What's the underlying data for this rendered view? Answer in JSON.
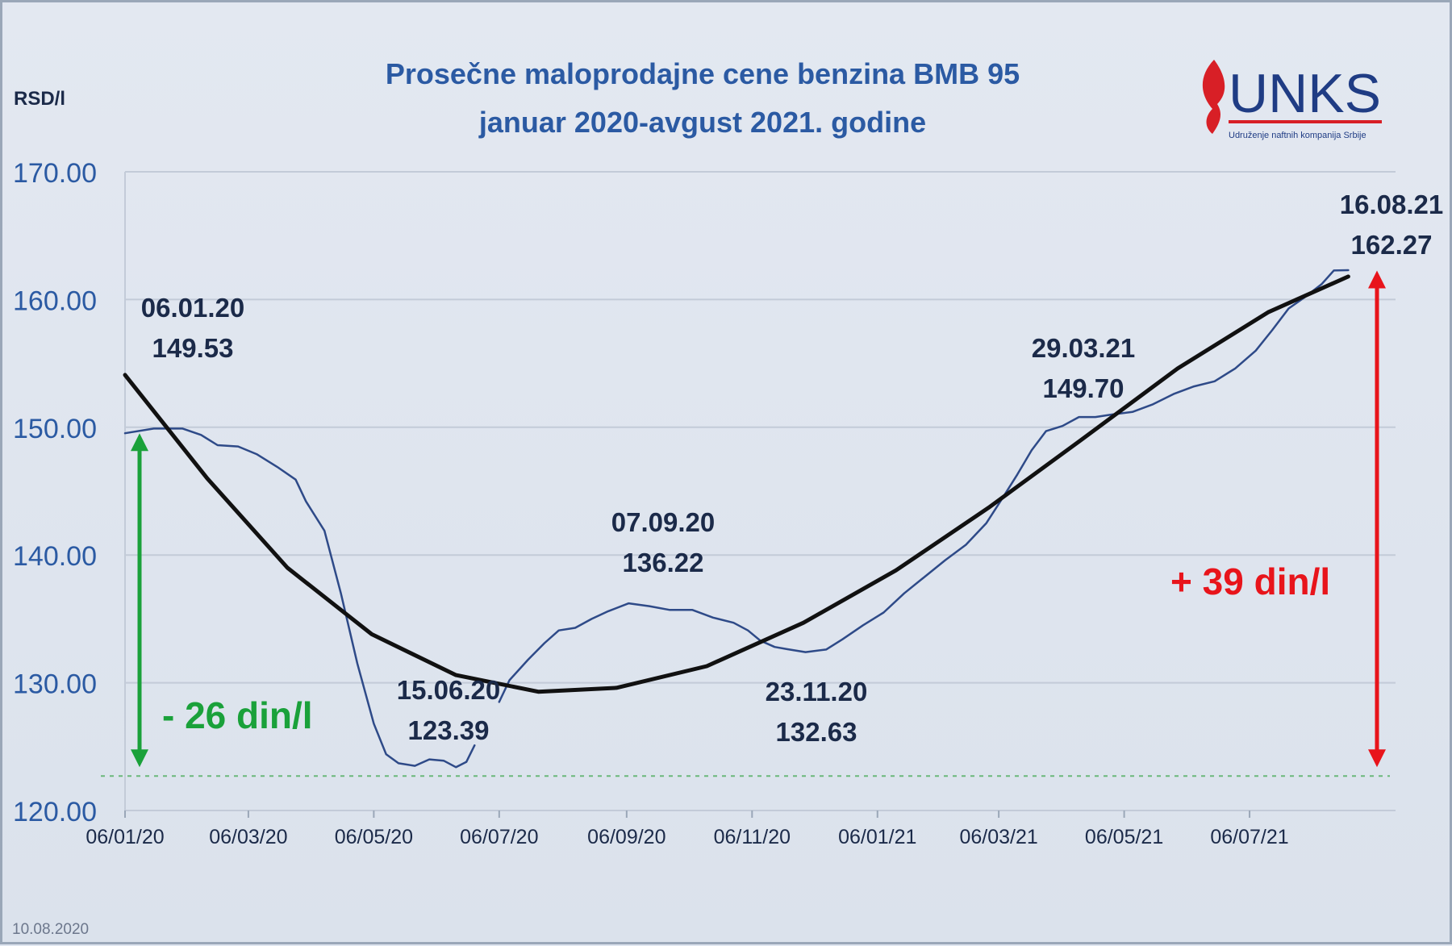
{
  "chart_data": {
    "type": "line",
    "title_line1": "Prosečne maloprodajne cene benzina BMB 95",
    "title_line2": "januar 2020-avgust 2021. godine",
    "ylabel": "RSD/l",
    "ylim": [
      120,
      170
    ],
    "yticks": [
      "120.00",
      "130.00",
      "140.00",
      "150.00",
      "160.00",
      "170.00"
    ],
    "ytick_values": [
      120,
      130,
      140,
      150,
      160,
      170
    ],
    "xlim": [
      "2020-01-06",
      "2021-09-15"
    ],
    "xtick_labels": [
      "06/01/20",
      "06/03/20",
      "06/05/20",
      "06/07/20",
      "06/09/20",
      "06/11/20",
      "06/01/21",
      "06/03/21",
      "06/05/21",
      "06/07/21"
    ],
    "xtick_dates": [
      "2020-01-06",
      "2020-03-06",
      "2020-05-06",
      "2020-07-06",
      "2020-09-06",
      "2020-11-06",
      "2021-01-06",
      "2021-03-06",
      "2021-05-06",
      "2021-07-06"
    ],
    "grid": "horizontal",
    "series": [
      {
        "color": "#2e4a88",
        "points": [
          [
            "2020-01-06",
            149.53
          ],
          [
            "2020-01-20",
            149.9
          ],
          [
            "2020-02-03",
            149.9
          ],
          [
            "2020-02-12",
            149.4
          ],
          [
            "2020-02-20",
            148.6
          ],
          [
            "2020-03-01",
            148.5
          ],
          [
            "2020-03-10",
            147.9
          ],
          [
            "2020-03-20",
            146.9
          ],
          [
            "2020-03-29",
            145.9
          ],
          [
            "2020-04-03",
            144.2
          ],
          [
            "2020-04-12",
            141.9
          ],
          [
            "2020-04-20",
            137.0
          ],
          [
            "2020-04-28",
            131.5
          ],
          [
            "2020-05-06",
            126.8
          ],
          [
            "2020-05-12",
            124.4
          ],
          [
            "2020-05-18",
            123.7
          ],
          [
            "2020-05-26",
            123.5
          ],
          [
            "2020-06-02",
            124.0
          ],
          [
            "2020-06-09",
            123.9
          ],
          [
            "2020-06-15",
            123.39
          ],
          [
            "2020-06-20",
            123.8
          ],
          [
            "2020-06-24",
            125.1
          ]
        ]
      },
      {
        "color": "#2e4a88",
        "points": [
          [
            "2020-07-06",
            128.5
          ],
          [
            "2020-07-11",
            130.2
          ],
          [
            "2020-07-20",
            131.8
          ],
          [
            "2020-07-28",
            133.1
          ],
          [
            "2020-08-04",
            134.1
          ],
          [
            "2020-08-12",
            134.3
          ],
          [
            "2020-08-20",
            135.0
          ],
          [
            "2020-08-28",
            135.6
          ],
          [
            "2020-09-07",
            136.22
          ],
          [
            "2020-09-17",
            136.0
          ],
          [
            "2020-09-27",
            135.7
          ],
          [
            "2020-10-08",
            135.7
          ],
          [
            "2020-10-18",
            135.1
          ],
          [
            "2020-10-28",
            134.7
          ],
          [
            "2020-11-04",
            134.1
          ],
          [
            "2020-11-10",
            133.3
          ],
          [
            "2020-11-17",
            132.8
          ],
          [
            "2020-11-23",
            132.63
          ],
          [
            "2020-12-02",
            132.4
          ],
          [
            "2020-12-12",
            132.6
          ],
          [
            "2020-12-20",
            133.4
          ],
          [
            "2020-12-30",
            134.5
          ],
          [
            "2021-01-09",
            135.5
          ],
          [
            "2021-01-19",
            137.0
          ],
          [
            "2021-01-29",
            138.3
          ],
          [
            "2021-02-08",
            139.6
          ],
          [
            "2021-02-18",
            140.8
          ],
          [
            "2021-02-28",
            142.5
          ],
          [
            "2021-03-08",
            144.5
          ],
          [
            "2021-03-15",
            146.3
          ],
          [
            "2021-03-22",
            148.2
          ],
          [
            "2021-03-29",
            149.7
          ],
          [
            "2021-04-06",
            150.1
          ],
          [
            "2021-04-14",
            150.8
          ],
          [
            "2021-04-22",
            150.8
          ],
          [
            "2021-04-30",
            151.0
          ],
          [
            "2021-05-10",
            151.2
          ],
          [
            "2021-05-20",
            151.8
          ],
          [
            "2021-05-30",
            152.6
          ],
          [
            "2021-06-09",
            153.2
          ],
          [
            "2021-06-19",
            153.6
          ],
          [
            "2021-06-29",
            154.6
          ],
          [
            "2021-07-09",
            156.0
          ],
          [
            "2021-07-17",
            157.6
          ],
          [
            "2021-07-25",
            159.3
          ],
          [
            "2021-08-02",
            160.2
          ],
          [
            "2021-08-10",
            161.2
          ],
          [
            "2021-08-16",
            162.27
          ],
          [
            "2021-08-23",
            162.3
          ]
        ]
      },
      {
        "color": "#111111",
        "points": [
          [
            "2020-01-06",
            154.1
          ],
          [
            "2020-02-15",
            146.0
          ],
          [
            "2020-03-25",
            139.0
          ],
          [
            "2020-05-05",
            133.8
          ],
          [
            "2020-06-15",
            130.6
          ],
          [
            "2020-07-25",
            129.3
          ],
          [
            "2020-09-01",
            129.6
          ],
          [
            "2020-10-15",
            131.3
          ],
          [
            "2020-12-01",
            134.7
          ],
          [
            "2021-01-15",
            138.8
          ],
          [
            "2021-03-01",
            143.7
          ],
          [
            "2021-04-15",
            149.0
          ],
          [
            "2021-06-01",
            154.6
          ],
          [
            "2021-07-15",
            159.0
          ],
          [
            "2021-08-23",
            161.8
          ]
        ]
      }
    ],
    "annotations": [
      {
        "date_label": "06.01.20",
        "value_label": "149.53"
      },
      {
        "date_label": "15.06.20",
        "value_label": "123.39"
      },
      {
        "date_label": "07.09.20",
        "value_label": "136.22"
      },
      {
        "date_label": "23.11.20",
        "value_label": "132.63"
      },
      {
        "date_label": "29.03.21",
        "value_label": "149.70"
      },
      {
        "date_label": "16.08.21",
        "value_label": "162.27"
      }
    ],
    "change_down": {
      "label": "- 26 din/l",
      "from": 149.53,
      "to": 123.39,
      "color": "#1aa13a"
    },
    "change_up": {
      "label": "+ 39 din/l",
      "from": 123.39,
      "to": 162.27,
      "color": "#e8141b"
    },
    "reference_line": {
      "value": 122.7,
      "color": "#6ab87a"
    }
  },
  "logo": {
    "text": "UNKS",
    "subtitle": "Udruženje naftnih kompanija Srbije"
  },
  "footer_date": "10.08.2020"
}
